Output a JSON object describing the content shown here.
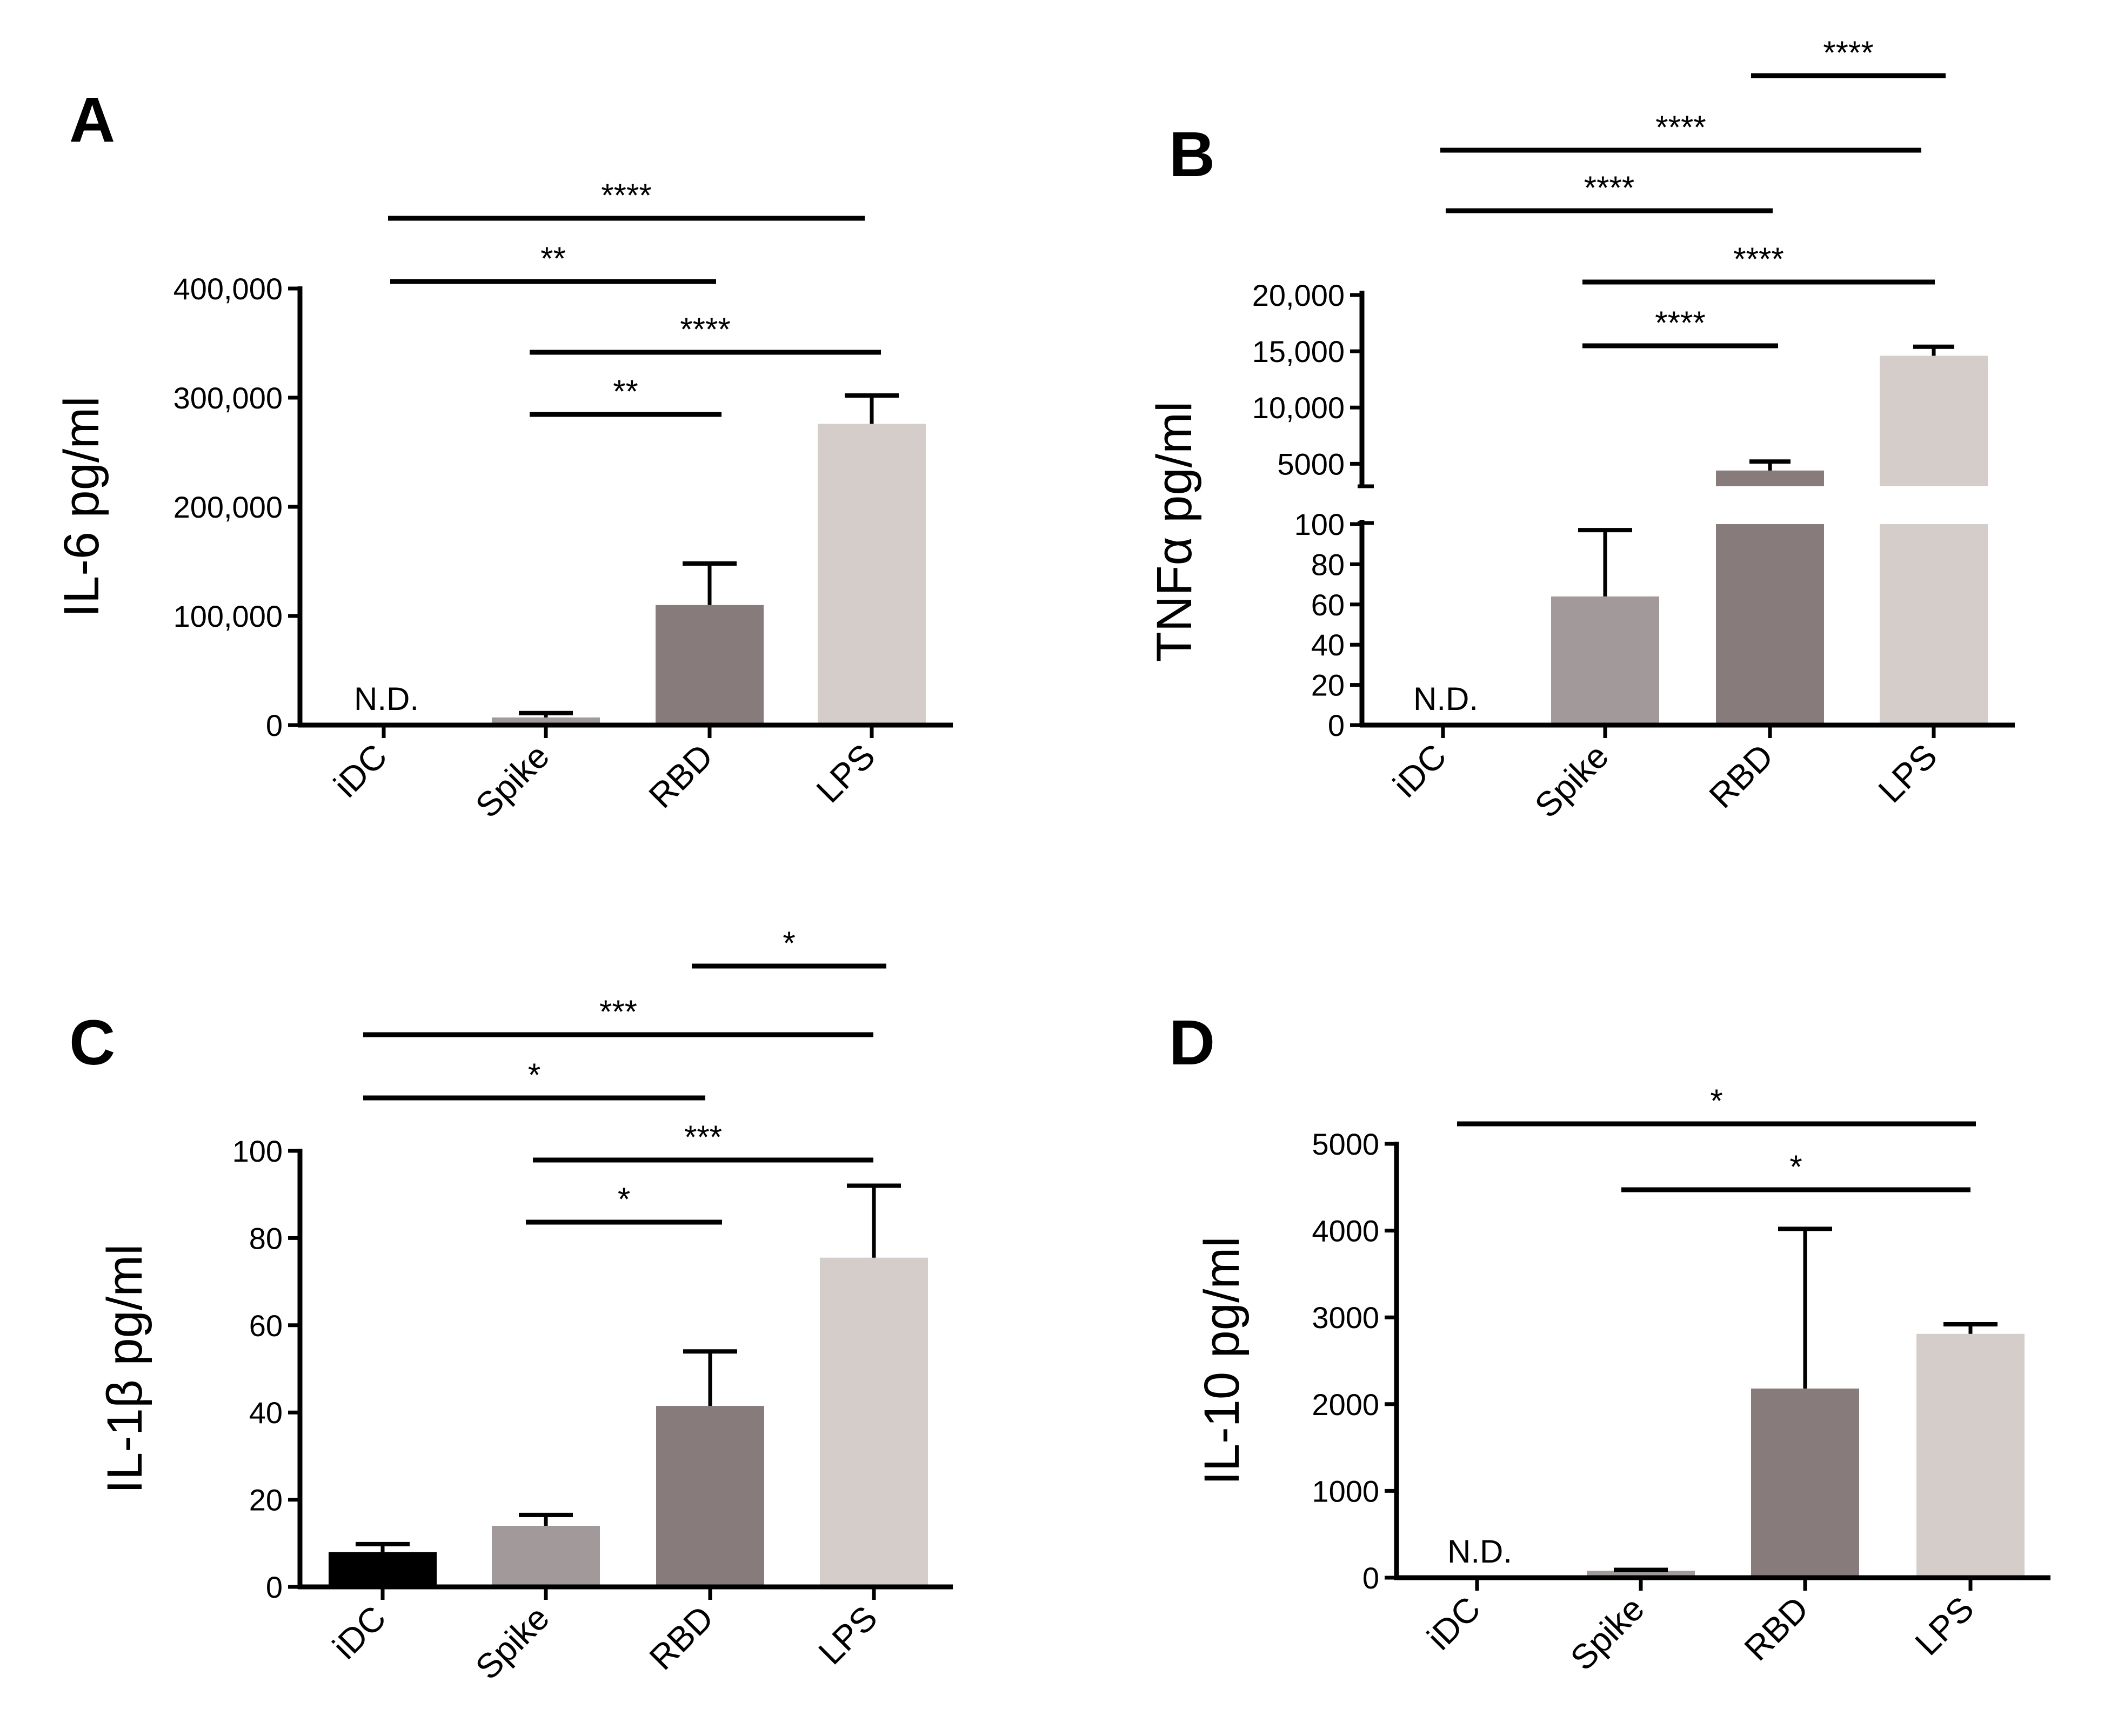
{
  "chart_data": [
    {
      "panel": "A",
      "type": "bar",
      "ylabel": "IL-6 pg/ml",
      "categories": [
        "iDC",
        "Spike",
        "RBD",
        "LPS"
      ],
      "values": [
        0,
        7000,
        110000,
        276000
      ],
      "errors": [
        0,
        4000,
        38000,
        26000
      ],
      "bar_colors": [
        "#000000",
        "#a29a9a",
        "#877c7b",
        "#d5cdca"
      ],
      "ylim": [
        0,
        400000
      ],
      "yticks": [
        0,
        100000,
        200000,
        300000,
        400000
      ],
      "ytick_labels": [
        "0",
        "100,000",
        "200,000",
        "300,000",
        "400,000"
      ],
      "not_detected": {
        "category": "iDC",
        "label": "N.D."
      },
      "significance": [
        {
          "from": "iDC",
          "to": "LPS",
          "stars": "****"
        },
        {
          "from": "iDC",
          "to": "RBD",
          "stars": "**"
        },
        {
          "from": "Spike",
          "to": "LPS",
          "stars": "****"
        },
        {
          "from": "Spike",
          "to": "RBD",
          "stars": "**"
        }
      ]
    },
    {
      "panel": "B",
      "type": "bar",
      "ylabel": "TNFα pg/ml",
      "categories": [
        "iDC",
        "Spike",
        "RBD",
        "LPS"
      ],
      "values": [
        0,
        64,
        4400,
        14600
      ],
      "errors": [
        0,
        33,
        800,
        800
      ],
      "bar_colors": [
        "#000000",
        "#a29a9a",
        "#877c7b",
        "#d5cdca"
      ],
      "axis_break": true,
      "lower_ylim": [
        0,
        100
      ],
      "lower_yticks": [
        0,
        20,
        40,
        60,
        80,
        100
      ],
      "lower_ytick_labels": [
        "0",
        "20",
        "40",
        "60",
        "80",
        "100"
      ],
      "upper_ylim": [
        3000,
        20000
      ],
      "upper_yticks": [
        5000,
        10000,
        15000,
        20000
      ],
      "upper_ytick_labels": [
        "5000",
        "10,000",
        "15,000",
        "20,000"
      ],
      "not_detected": {
        "category": "iDC",
        "label": "N.D."
      },
      "significance": [
        {
          "from": "RBD",
          "to": "LPS",
          "stars": "****"
        },
        {
          "from": "iDC",
          "to": "LPS",
          "stars": "****"
        },
        {
          "from": "iDC",
          "to": "RBD",
          "stars": "****"
        },
        {
          "from": "Spike",
          "to": "LPS",
          "stars": "****"
        },
        {
          "from": "Spike",
          "to": "RBD",
          "stars": "****"
        }
      ]
    },
    {
      "panel": "C",
      "type": "bar",
      "ylabel": "IL-1β pg/ml",
      "categories": [
        "iDC",
        "Spike",
        "RBD",
        "LPS"
      ],
      "values": [
        8,
        14,
        41.5,
        75.5
      ],
      "errors": [
        1.8,
        2.5,
        12.5,
        16.5
      ],
      "bar_colors": [
        "#000000",
        "#a29a9a",
        "#877c7b",
        "#d5cdca"
      ],
      "ylim": [
        0,
        100
      ],
      "yticks": [
        0,
        20,
        40,
        60,
        80,
        100
      ],
      "ytick_labels": [
        "0",
        "20",
        "40",
        "60",
        "80",
        "100"
      ],
      "significance": [
        {
          "from": "RBD",
          "to": "LPS",
          "stars": "*"
        },
        {
          "from": "iDC",
          "to": "LPS",
          "stars": "***"
        },
        {
          "from": "iDC",
          "to": "RBD",
          "stars": "*"
        },
        {
          "from": "Spike",
          "to": "LPS",
          "stars": "***"
        },
        {
          "from": "Spike",
          "to": "RBD",
          "stars": "*"
        }
      ]
    },
    {
      "panel": "D",
      "type": "bar",
      "ylabel": "IL-10 pg/ml",
      "categories": [
        "iDC",
        "Spike",
        "RBD",
        "LPS"
      ],
      "values": [
        0,
        80,
        2180,
        2810
      ],
      "errors": [
        0,
        10,
        1840,
        110
      ],
      "bar_colors": [
        "#000000",
        "#a29a9a",
        "#877c7b",
        "#d5cdca"
      ],
      "ylim": [
        0,
        5000
      ],
      "yticks": [
        0,
        1000,
        2000,
        3000,
        4000,
        5000
      ],
      "ytick_labels": [
        "0",
        "1000",
        "2000",
        "3000",
        "4000",
        "5000"
      ],
      "not_detected": {
        "category": "iDC",
        "label": "N.D."
      },
      "significance": [
        {
          "from": "iDC",
          "to": "LPS",
          "stars": "*"
        },
        {
          "from": "Spike",
          "to": "LPS",
          "stars": "*"
        }
      ]
    }
  ]
}
